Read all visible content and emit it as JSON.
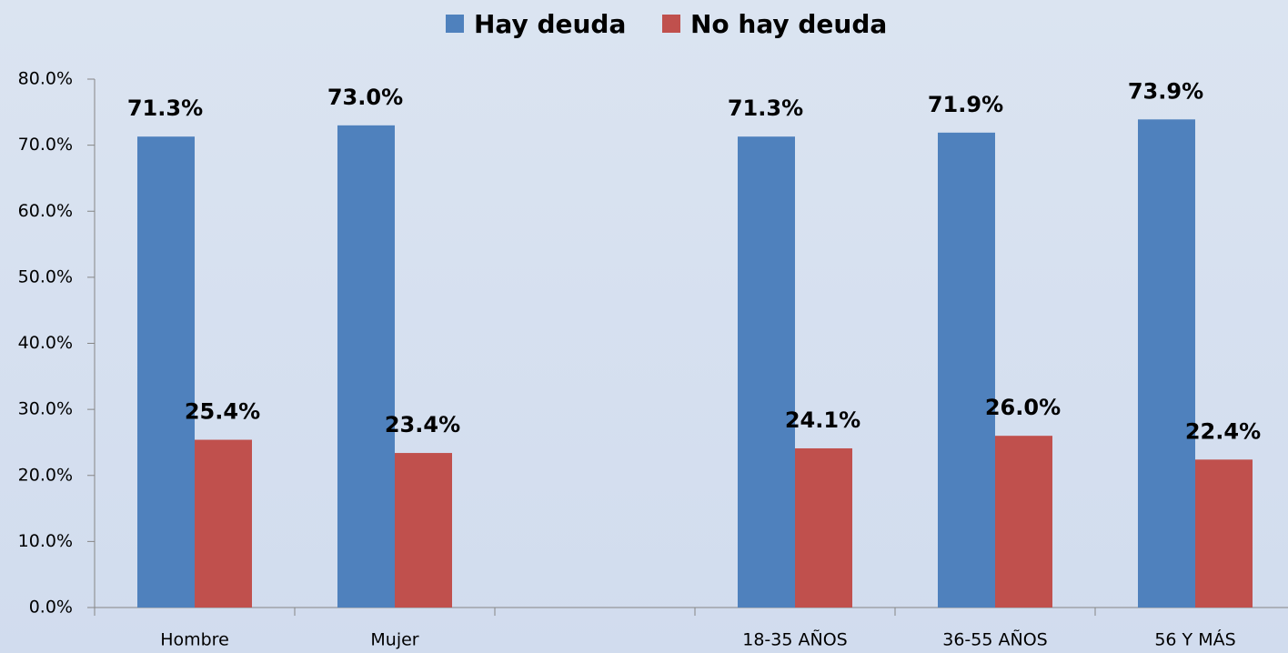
{
  "chart_data": {
    "type": "bar",
    "categories": [
      "Hombre",
      "Mujer",
      null,
      "18-35 AÑOS",
      "36-55 AÑOS",
      "56 Y MÁS"
    ],
    "series": [
      {
        "name": "Hay deuda",
        "color": "#4f81bd",
        "values": [
          71.3,
          73.0,
          null,
          71.3,
          71.9,
          73.9
        ],
        "value_labels": [
          "71.3%",
          "73.0%",
          null,
          "71.3%",
          "71.9%",
          "73.9%"
        ]
      },
      {
        "name": "No hay deuda",
        "color": "#c0504d",
        "values": [
          25.4,
          23.4,
          null,
          24.1,
          26.0,
          22.4
        ],
        "value_labels": [
          "25.4%",
          "23.4%",
          null,
          "24.1%",
          "26.0%",
          "22.4%"
        ]
      }
    ],
    "ylim": [
      0,
      80
    ],
    "yticks": [
      {
        "value": 0,
        "label": "0.0%"
      },
      {
        "value": 10,
        "label": "10.0%"
      },
      {
        "value": 20,
        "label": "20.0%"
      },
      {
        "value": 30,
        "label": "30.0%"
      },
      {
        "value": 40,
        "label": "40.0%"
      },
      {
        "value": 50,
        "label": "50.0%"
      },
      {
        "value": 60,
        "label": "60.0%"
      },
      {
        "value": 70,
        "label": "70.0%"
      },
      {
        "value": 80,
        "label": "80.0%"
      }
    ],
    "legend": "top"
  }
}
